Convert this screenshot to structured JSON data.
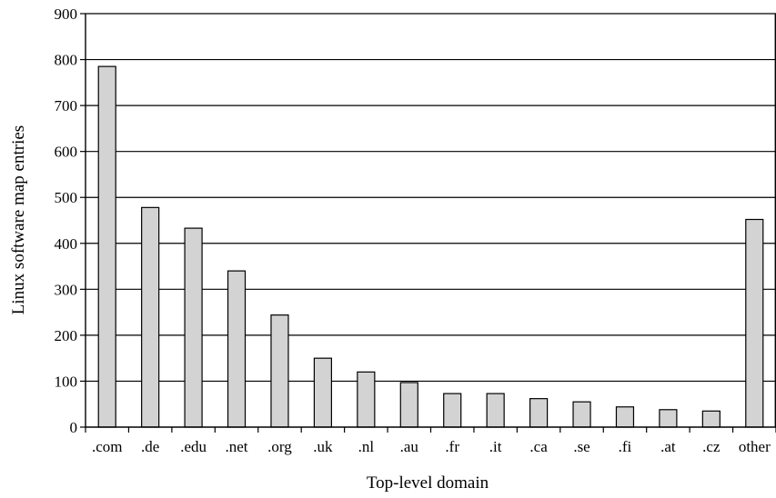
{
  "chart_data": {
    "type": "bar",
    "title": "",
    "xlabel": "Top-level domain",
    "ylabel": "Linux software map entries",
    "categories": [
      ".com",
      ".de",
      ".edu",
      ".net",
      ".org",
      ".uk",
      ".nl",
      ".au",
      ".fr",
      ".it",
      ".ca",
      ".se",
      ".fi",
      ".at",
      ".cz",
      "other"
    ],
    "values": [
      785,
      478,
      433,
      340,
      244,
      150,
      120,
      97,
      73,
      73,
      62,
      55,
      44,
      38,
      35,
      452
    ],
    "ylim": [
      0,
      900
    ],
    "yticks": [
      "0",
      "100",
      "200",
      "300",
      "400",
      "500",
      "600",
      "700",
      "800",
      "900"
    ],
    "grid": true,
    "legend": "none",
    "colors": {
      "bar_fill": "#d3d3d3",
      "bar_stroke": "#000000",
      "grid": "#000000"
    }
  }
}
